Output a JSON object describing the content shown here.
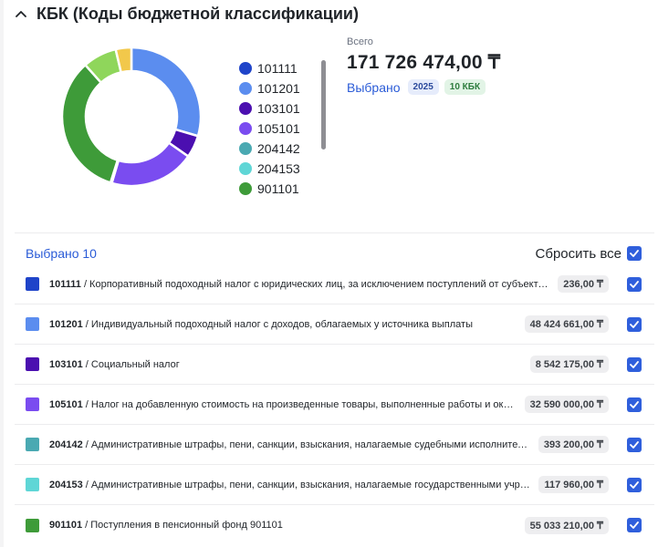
{
  "section": {
    "title": "КБК (Коды бюджетной классификации)"
  },
  "chart_data": {
    "type": "pie",
    "donut": true,
    "categories": [
      "101111",
      "101201",
      "103101",
      "105101",
      "204142",
      "204153",
      "901101"
    ],
    "colors": [
      "#1f44c9",
      "#5b8def",
      "#4b0fb0",
      "#7a4cf0",
      "#4aa9b2",
      "#5fd6d6",
      "#3e9b39"
    ],
    "extra_segment_colors": [
      "#8fd65b",
      "#f2c84b"
    ],
    "values": [
      236.0,
      48424661.0,
      8542175.0,
      32590000.0,
      393200.0,
      117960.0,
      55033210.0
    ],
    "extra_values": [
      13000000.0,
      6000000.0
    ],
    "legend": "right"
  },
  "legend": [
    {
      "label": "101111",
      "color": "#1f44c9"
    },
    {
      "label": "101201",
      "color": "#5b8def"
    },
    {
      "label": "103101",
      "color": "#4b0fb0"
    },
    {
      "label": "105101",
      "color": "#7a4cf0"
    },
    {
      "label": "204142",
      "color": "#4aa9b2"
    },
    {
      "label": "204153",
      "color": "#5fd6d6"
    },
    {
      "label": "901101",
      "color": "#3e9b39"
    }
  ],
  "totals": {
    "label": "Всего",
    "value": "171 726 474,00 ₸",
    "selected_label": "Выбрано",
    "year_badge": "2025",
    "count_badge": "10 КБК"
  },
  "list": {
    "count_label": "Выбрано 10",
    "reset_label": "Сбросить все",
    "rows": [
      {
        "code": "101111",
        "desc": " / Корпоративный подоходный налог с юридических лиц, за исключением поступлений от субъектов крупного предпринимательства",
        "amount": "236,00 ₸",
        "color": "#1f44c9"
      },
      {
        "code": "101201",
        "desc": " / Индивидуальный подоходный налог с доходов, облагаемых у источника выплаты",
        "amount": "48 424 661,00 ₸",
        "color": "#5b8def"
      },
      {
        "code": "103101",
        "desc": " / Социальный налог",
        "amount": "8 542 175,00 ₸",
        "color": "#4b0fb0"
      },
      {
        "code": "105101",
        "desc": " / Налог на добавленную стоимость на произведенные товары, выполненные работы и оказанные услуги",
        "amount": "32 590 000,00 ₸",
        "color": "#7a4cf0"
      },
      {
        "code": "204142",
        "desc": " / Административные штрафы, пени, санкции, взыскания, налагаемые судебными исполнителями",
        "amount": "393 200,00 ₸",
        "color": "#4aa9b2"
      },
      {
        "code": "204153",
        "desc": " / Административные штрафы, пени, санкции, взыскания, налагаемые государственными учреждениями",
        "amount": "117 960,00 ₸",
        "color": "#5fd6d6"
      },
      {
        "code": "901101",
        "desc": " / Поступления в пенсионный фонд 901101",
        "amount": "55 033 210,00 ₸",
        "color": "#3e9b39"
      }
    ]
  }
}
